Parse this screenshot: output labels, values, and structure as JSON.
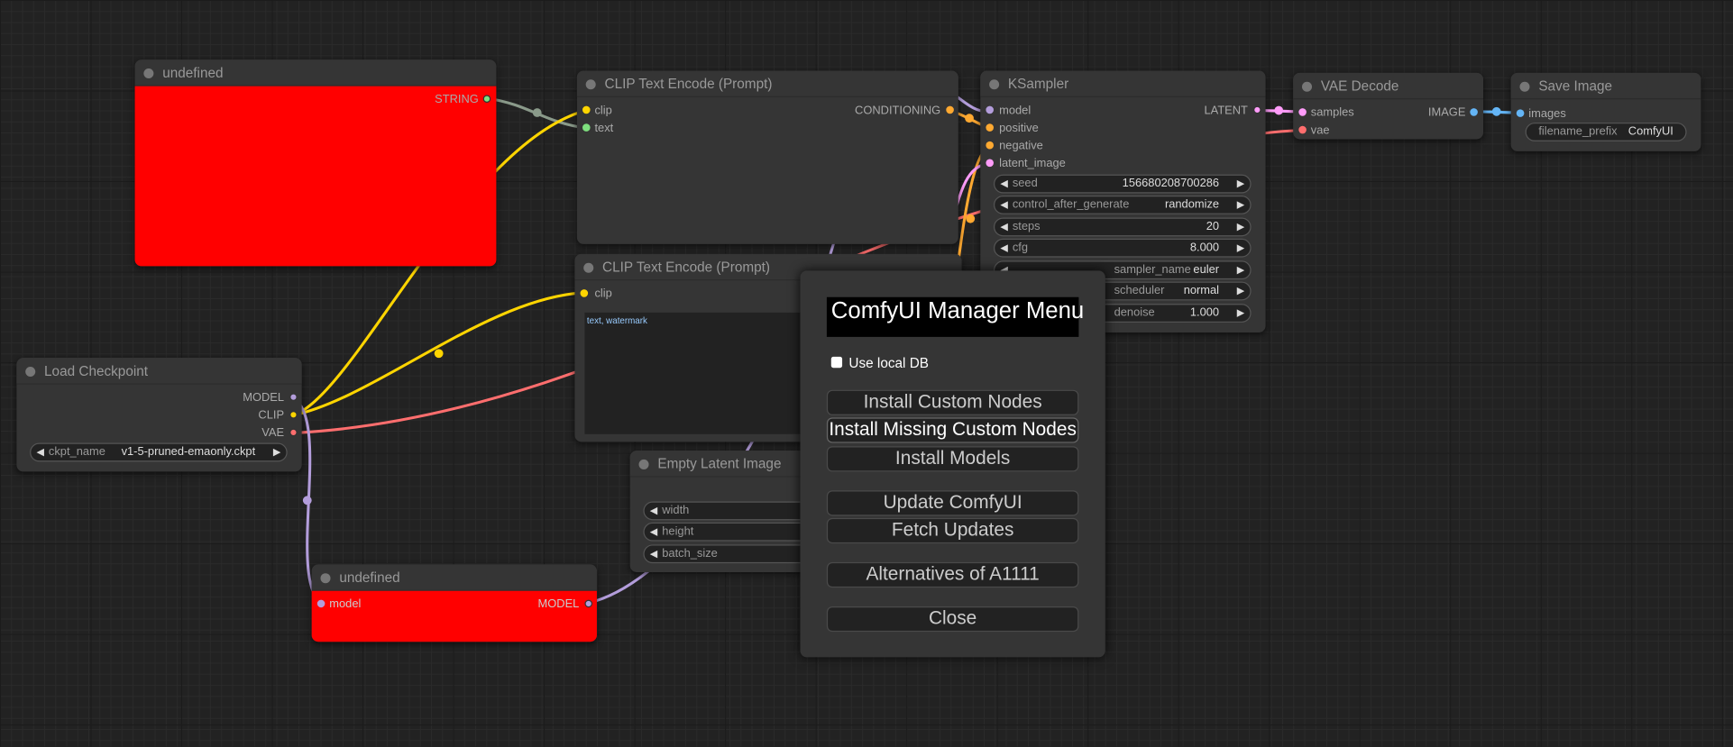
{
  "nodes": {
    "undefined_string": {
      "title": "undefined",
      "outputs": [
        "STRING"
      ]
    },
    "clip_positive": {
      "title": "CLIP Text Encode (Prompt)",
      "inputs": [
        "clip",
        "text"
      ],
      "outputs": [
        "CONDITIONING"
      ]
    },
    "clip_negative": {
      "title": "CLIP Text Encode (Prompt)",
      "inputs": [
        "clip"
      ],
      "text": "text, watermark"
    },
    "ksampler": {
      "title": "KSampler",
      "inputs": [
        "model",
        "positive",
        "negative",
        "latent_image"
      ],
      "outputs": [
        "LATENT"
      ],
      "widgets": [
        {
          "label": "seed",
          "value": "156680208700286"
        },
        {
          "label": "control_after_generate",
          "value": "randomize"
        },
        {
          "label": "steps",
          "value": "20"
        },
        {
          "label": "cfg",
          "value": "8.000"
        },
        {
          "label": "sampler_name",
          "value": "euler"
        },
        {
          "label": "scheduler",
          "value": "normal"
        },
        {
          "label": "denoise",
          "value": "1.000"
        }
      ]
    },
    "vae_decode": {
      "title": "VAE Decode",
      "inputs": [
        "samples",
        "vae"
      ],
      "outputs": [
        "IMAGE"
      ]
    },
    "save_image": {
      "title": "Save Image",
      "inputs": [
        "images"
      ],
      "widgets": [
        {
          "label": "filename_prefix",
          "value": "ComfyUI"
        }
      ]
    },
    "load_checkpoint": {
      "title": "Load Checkpoint",
      "outputs": [
        "MODEL",
        "CLIP",
        "VAE"
      ],
      "widgets": [
        {
          "label": "ckpt_name",
          "value": "v1-5-pruned-emaonly.ckpt"
        }
      ]
    },
    "empty_latent": {
      "title": "Empty Latent Image",
      "widgets": [
        {
          "label": "width"
        },
        {
          "label": "height"
        },
        {
          "label": "batch_size"
        }
      ]
    },
    "undefined_model": {
      "title": "undefined",
      "inputs": [
        "model"
      ],
      "outputs": [
        "MODEL"
      ]
    }
  },
  "modal": {
    "title": "ComfyUI Manager Menu",
    "checkbox_label": "Use local DB",
    "checkbox_checked": false,
    "buttons": [
      "Install Custom Nodes",
      "Install Missing Custom Nodes",
      "Install Models",
      "Update ComfyUI",
      "Fetch Updates",
      "Alternatives of A1111",
      "Close"
    ]
  },
  "colors": {
    "clip": "#FFD500",
    "model": "#B39DDB",
    "vae": "#FF6E6E",
    "conditioning": "#FFA931",
    "latent": "#FF9CF9",
    "image": "#64B5F6",
    "string": "#7FE07F",
    "error_body": "#FF0000"
  }
}
